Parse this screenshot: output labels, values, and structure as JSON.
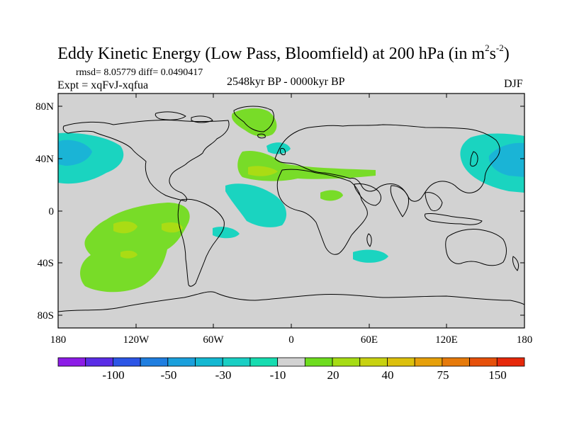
{
  "title": {
    "main": "Eddy Kinetic Energy (Low Pass, Bloomfield) at 200 hPa (in m",
    "sup1": "2",
    "mid": "s",
    "sup2": "-2",
    "close": ")"
  },
  "stats": "rmsd= 8.05779 diff= 0.0490417",
  "experiment": "Expt = xqFvJ-xqfua",
  "period": "2548kyr BP - 0000kyr BP",
  "season": "DJF",
  "y_ticks": [
    "80N",
    "40N",
    "0",
    "40S",
    "80S"
  ],
  "x_ticks": [
    "180",
    "120W",
    "60W",
    "0",
    "60E",
    "120E",
    "180"
  ],
  "colorbar": {
    "colors": [
      "#8c1ce6",
      "#5a2de6",
      "#2c55e6",
      "#1f7ee0",
      "#1aa0dc",
      "#14b8d2",
      "#19cfc4",
      "#16dcb0",
      "#d2d2d2",
      "#6edc1e",
      "#a6dc14",
      "#c8d210",
      "#dcc00c",
      "#e6a00a",
      "#e67a0a",
      "#e6500a",
      "#e6280a"
    ],
    "labels": [
      "-100",
      "-50",
      "-30",
      "-10",
      "20",
      "40",
      "75",
      "150"
    ]
  },
  "colors": {
    "land_sea_background": "#d2d2d2",
    "positive_light": "#78dc28",
    "positive_medium": "#aadc14",
    "negative_light": "#1ad4c0",
    "negative_medium": "#1ab4d6"
  }
}
